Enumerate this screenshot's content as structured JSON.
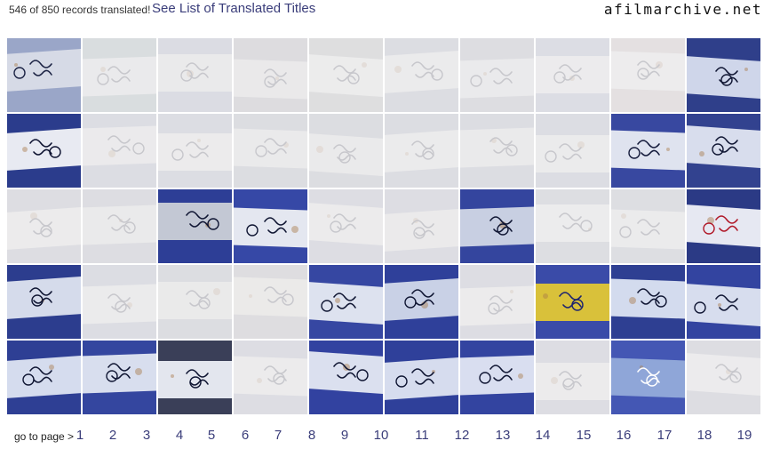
{
  "header": {
    "count_text": "546 of 850 records translated!",
    "link_text": "See List of Translated Titles",
    "logo": "afilmarchive.net"
  },
  "tiles": [
    {
      "translated": true,
      "bg": "#9aa6c8",
      "beam": "#d6dae6",
      "ink": "#1c2344"
    },
    {
      "translated": false,
      "bg": "#a9b6b2",
      "beam": "#e6e6e0",
      "ink": "#6a6a70"
    },
    {
      "translated": false,
      "bg": "#b0b4c0",
      "beam": "#e7e5df",
      "ink": "#6a6a70"
    },
    {
      "translated": false,
      "bg": "#b6b4b4",
      "beam": "#e4e2dc",
      "ink": "#6a6a70"
    },
    {
      "translated": false,
      "bg": "#b9b9b4",
      "beam": "#ecebe2",
      "ink": "#6a6a70"
    },
    {
      "translated": false,
      "bg": "#b5b7bd",
      "beam": "#e9e8e2",
      "ink": "#6a6a70"
    },
    {
      "translated": false,
      "bg": "#b8b8bc",
      "beam": "#e6e5e0",
      "ink": "#6a6a70"
    },
    {
      "translated": false,
      "bg": "#b3b8c4",
      "beam": "#ebeae4",
      "ink": "#6a6a70"
    },
    {
      "translated": false,
      "bg": "#cfc3b9",
      "beam": "#efece7",
      "ink": "#6a6a70"
    },
    {
      "translated": true,
      "bg": "#2f3f8a",
      "beam": "#cfd6ea",
      "ink": "#101633"
    },
    {
      "translated": true,
      "bg": "#2b3c8c",
      "beam": "#e8eaf2",
      "ink": "#0d1230"
    },
    {
      "translated": false,
      "bg": "#b3b6c2",
      "beam": "#e8e7e1",
      "ink": "#6a6a70"
    },
    {
      "translated": false,
      "bg": "#b3b6c2",
      "beam": "#ebe9e2",
      "ink": "#6a6a70"
    },
    {
      "translated": false,
      "bg": "#b5b6bb",
      "beam": "#e6e5df",
      "ink": "#6a6a70"
    },
    {
      "translated": false,
      "bg": "#b5b6bb",
      "beam": "#e7e5dd",
      "ink": "#6a6a70"
    },
    {
      "translated": false,
      "bg": "#b4b6bd",
      "beam": "#e9e8e2",
      "ink": "#6a6a70"
    },
    {
      "translated": false,
      "bg": "#b4b6bd",
      "beam": "#e6e5df",
      "ink": "#6a6a70"
    },
    {
      "translated": false,
      "bg": "#b3b6c0",
      "beam": "#e9e8e2",
      "ink": "#6a6a70"
    },
    {
      "translated": true,
      "bg": "#3848a0",
      "beam": "#dfe3ef",
      "ink": "#141a3a"
    },
    {
      "translated": true,
      "bg": "#32428f",
      "beam": "#d8dded",
      "ink": "#101633"
    },
    {
      "translated": false,
      "bg": "#b7b8bd",
      "beam": "#ebe9e2",
      "ink": "#6a6a70"
    },
    {
      "translated": false,
      "bg": "#b7b8bd",
      "beam": "#e7e6df",
      "ink": "#6a6a70"
    },
    {
      "translated": true,
      "bg": "#2d3e96",
      "beam": "#c3c8d4",
      "ink": "#101633"
    },
    {
      "translated": true,
      "bg": "#3648a6",
      "beam": "#e4e7f0",
      "ink": "#101633"
    },
    {
      "translated": false,
      "bg": "#b6b8c0",
      "beam": "#ebeae3",
      "ink": "#6a6a70"
    },
    {
      "translated": false,
      "bg": "#b6b8c0",
      "beam": "#e8e6df",
      "ink": "#6a6a70"
    },
    {
      "translated": true,
      "bg": "#34459e",
      "beam": "#c8cfe2",
      "ink": "#101633"
    },
    {
      "translated": false,
      "bg": "#b8b9bf",
      "beam": "#ecebe5",
      "ink": "#6a6a70"
    },
    {
      "translated": false,
      "bg": "#b8b9bf",
      "beam": "#eae9e3",
      "ink": "#6a6a70"
    },
    {
      "translated": true,
      "bg": "#2b3a85",
      "beam": "#e6e8f2",
      "ink": "#b01828"
    },
    {
      "translated": true,
      "bg": "#2c3d8e",
      "beam": "#d5dbeb",
      "ink": "#0f1532"
    },
    {
      "translated": false,
      "bg": "#b4b7c2",
      "beam": "#e9e8e2",
      "ink": "#6a6a70"
    },
    {
      "translated": false,
      "bg": "#b5b6bb",
      "beam": "#e6e4dc",
      "ink": "#6a6a70"
    },
    {
      "translated": false,
      "bg": "#b9b8b6",
      "beam": "#e9e4d8",
      "ink": "#6a6a70"
    },
    {
      "translated": true,
      "bg": "#3647a2",
      "beam": "#dde2ef",
      "ink": "#101633"
    },
    {
      "translated": true,
      "bg": "#2f409a",
      "beam": "#c9d1e6",
      "ink": "#101633"
    },
    {
      "translated": false,
      "bg": "#b6b8c0",
      "beam": "#ebeae3",
      "ink": "#6a6a70"
    },
    {
      "translated": true,
      "bg": "#3a4ba8",
      "beam": "#d9c13a",
      "ink": "#1c2370"
    },
    {
      "translated": true,
      "bg": "#2e3f92",
      "beam": "#d3dbee",
      "ink": "#101633"
    },
    {
      "translated": true,
      "bg": "#3344a0",
      "beam": "#d7ddee",
      "ink": "#101633"
    },
    {
      "translated": true,
      "bg": "#2e3f94",
      "beam": "#d5dcee",
      "ink": "#101633"
    },
    {
      "translated": true,
      "bg": "#34469f",
      "beam": "#d8deee",
      "ink": "#101633"
    },
    {
      "translated": true,
      "bg": "#3a3f58",
      "beam": "#e3e6ee",
      "ink": "#101633"
    },
    {
      "translated": false,
      "bg": "#b6b8c0",
      "beam": "#ebeae3",
      "ink": "#6a6a70"
    },
    {
      "translated": true,
      "bg": "#3242a0",
      "beam": "#dbe0ef",
      "ink": "#101633"
    },
    {
      "translated": true,
      "bg": "#2f409a",
      "beam": "#d6dcee",
      "ink": "#101633"
    },
    {
      "translated": true,
      "bg": "#3344a0",
      "beam": "#d9def0",
      "ink": "#101633"
    },
    {
      "translated": false,
      "bg": "#b6b8c0",
      "beam": "#ebeae3",
      "ink": "#6a6a70"
    },
    {
      "translated": true,
      "bg": "#4457b4",
      "beam": "#8fa6d8",
      "ink": "#ffffff"
    },
    {
      "translated": false,
      "bg": "#b7b8be",
      "beam": "#ebeae4",
      "ink": "#6a6a70"
    }
  ],
  "pager": {
    "label": "go to page >",
    "pages": [
      "1",
      "2",
      "3",
      "4",
      "5",
      "6",
      "7",
      "8",
      "9",
      "10",
      "11",
      "12",
      "13",
      "14",
      "15",
      "16",
      "17",
      "18",
      "19"
    ]
  }
}
